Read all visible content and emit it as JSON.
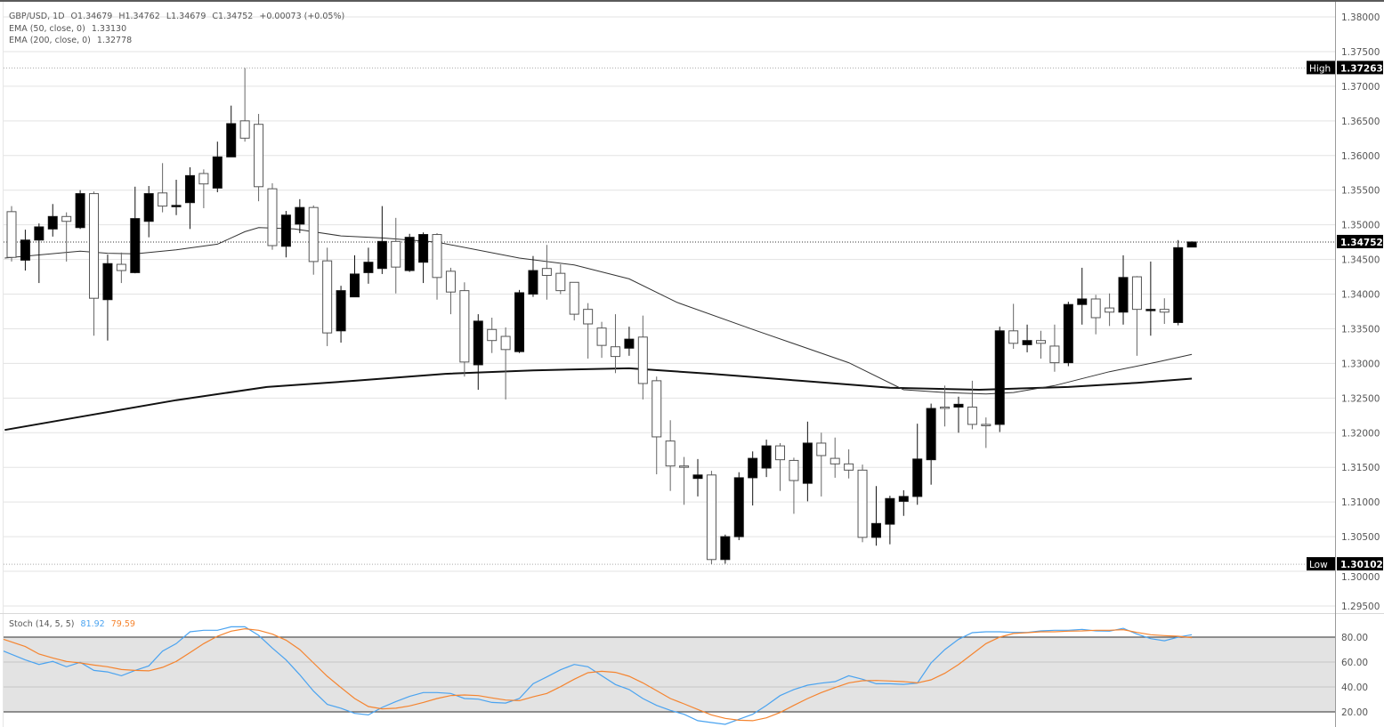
{
  "legend": {
    "symbol": "GBP/USD, 1D",
    "open": "O1.34679",
    "high": "H1.34762",
    "low": "L1.34679",
    "close": "C1.34752",
    "change": "+0.00073 (+0.05%)",
    "ema50_label": "EMA (50, close, 0)",
    "ema50_value": "1.33130",
    "ema200_label": "EMA (200, close, 0)",
    "ema200_value": "1.32778"
  },
  "stoch_legend": {
    "label": "Stoch (14, 5, 5)",
    "k_value": "81.92",
    "d_value": "79.59"
  },
  "tags": {
    "high_label": "High",
    "high_value": "1.37263",
    "low_label": "Low",
    "low_value": "1.30102",
    "last_value": "1.34752"
  },
  "colors": {
    "k_line": "#4aa3f0",
    "d_line": "#f5842f",
    "bull": "#000000",
    "bear": "#ffffff"
  },
  "chart_data": [
    {
      "type": "candlestick",
      "title": "GBP/USD, 1D",
      "price_axis": {
        "range": [
          1.295,
          1.38
        ],
        "ticks": [
          "1.38000",
          "1.37500",
          "1.37000",
          "1.36500",
          "1.36000",
          "1.35500",
          "1.35000",
          "1.34500",
          "1.34000",
          "1.33500",
          "1.33000",
          "1.32500",
          "1.32000",
          "1.31500",
          "1.31000",
          "1.30500",
          "1.30000",
          "1.29500"
        ]
      },
      "grid": true,
      "ohlc": [
        [
          1.3519,
          1.3527,
          1.3447,
          1.3453
        ],
        [
          1.3449,
          1.3493,
          1.3434,
          1.3478
        ],
        [
          1.3478,
          1.3502,
          1.3416,
          1.3497
        ],
        [
          1.3494,
          1.353,
          1.3483,
          1.3512
        ],
        [
          1.3512,
          1.3518,
          1.3447,
          1.3505
        ],
        [
          1.3496,
          1.355,
          1.3494,
          1.3545
        ],
        [
          1.3545,
          1.3548,
          1.334,
          1.3394
        ],
        [
          1.3392,
          1.3457,
          1.3333,
          1.3444
        ],
        [
          1.3443,
          1.346,
          1.3416,
          1.3434
        ],
        [
          1.3431,
          1.3555,
          1.343,
          1.3509
        ],
        [
          1.3505,
          1.3556,
          1.3482,
          1.3545
        ],
        [
          1.3546,
          1.3589,
          1.3518,
          1.3527
        ],
        [
          1.3528,
          1.3565,
          1.3514,
          1.3528
        ],
        [
          1.3532,
          1.3583,
          1.3494,
          1.3571
        ],
        [
          1.3574,
          1.358,
          1.3524,
          1.3559
        ],
        [
          1.3553,
          1.362,
          1.3547,
          1.3598
        ],
        [
          1.3598,
          1.3672,
          1.3598,
          1.3646
        ],
        [
          1.365,
          1.37263,
          1.362,
          1.3625
        ],
        [
          1.3645,
          1.366,
          1.3534,
          1.3555
        ],
        [
          1.3552,
          1.356,
          1.3464,
          1.347
        ],
        [
          1.3469,
          1.352,
          1.3453,
          1.3514
        ],
        [
          1.3501,
          1.3537,
          1.3488,
          1.3525
        ],
        [
          1.3525,
          1.3528,
          1.3428,
          1.3447
        ],
        [
          1.3448,
          1.3467,
          1.3325,
          1.3344
        ],
        [
          1.3347,
          1.3412,
          1.333,
          1.3405
        ],
        [
          1.3396,
          1.3456,
          1.3396,
          1.3429
        ],
        [
          1.3431,
          1.3467,
          1.3415,
          1.3446
        ],
        [
          1.3437,
          1.3527,
          1.3429,
          1.3476
        ],
        [
          1.3476,
          1.351,
          1.3401,
          1.3439
        ],
        [
          1.3434,
          1.3487,
          1.3432,
          1.3482
        ],
        [
          1.3446,
          1.3489,
          1.3416,
          1.3486
        ],
        [
          1.3486,
          1.3488,
          1.3392,
          1.3424
        ],
        [
          1.3433,
          1.3438,
          1.3371,
          1.3403
        ],
        [
          1.3405,
          1.3417,
          1.3281,
          1.3302
        ],
        [
          1.3298,
          1.3371,
          1.3262,
          1.3361
        ],
        [
          1.3349,
          1.3366,
          1.3315,
          1.3333
        ],
        [
          1.3339,
          1.3352,
          1.3248,
          1.332
        ],
        [
          1.3317,
          1.3406,
          1.3315,
          1.3402
        ],
        [
          1.34,
          1.3455,
          1.3396,
          1.3434
        ],
        [
          1.3437,
          1.3471,
          1.3392,
          1.3427
        ],
        [
          1.343,
          1.3443,
          1.34,
          1.3405
        ],
        [
          1.3417,
          1.3417,
          1.3362,
          1.3371
        ],
        [
          1.3378,
          1.3387,
          1.3307,
          1.3357
        ],
        [
          1.3351,
          1.336,
          1.3308,
          1.3326
        ],
        [
          1.3324,
          1.3371,
          1.3286,
          1.331
        ],
        [
          1.3322,
          1.3353,
          1.3311,
          1.3335
        ],
        [
          1.3338,
          1.3369,
          1.3248,
          1.3271
        ],
        [
          1.3275,
          1.3281,
          1.314,
          1.3194
        ],
        [
          1.3188,
          1.3218,
          1.3116,
          1.3152
        ],
        [
          1.3152,
          1.3165,
          1.3096,
          1.3151
        ],
        [
          1.3134,
          1.3162,
          1.3108,
          1.3139
        ],
        [
          1.3139,
          1.3145,
          1.30102,
          1.3017
        ],
        [
          1.3017,
          1.3053,
          1.3011,
          1.305
        ],
        [
          1.305,
          1.3143,
          1.3045,
          1.3135
        ],
        [
          1.3135,
          1.3173,
          1.3095,
          1.3163
        ],
        [
          1.3149,
          1.319,
          1.3136,
          1.3181
        ],
        [
          1.3181,
          1.3185,
          1.3116,
          1.3161
        ],
        [
          1.316,
          1.3164,
          1.3083,
          1.3131
        ],
        [
          1.3127,
          1.3216,
          1.3101,
          1.3185
        ],
        [
          1.3185,
          1.32,
          1.3108,
          1.3167
        ],
        [
          1.3163,
          1.3193,
          1.3135,
          1.3155
        ],
        [
          1.3155,
          1.3176,
          1.3134,
          1.3146
        ],
        [
          1.3146,
          1.3154,
          1.3042,
          1.3049
        ],
        [
          1.3049,
          1.3123,
          1.3037,
          1.3069
        ],
        [
          1.3068,
          1.3109,
          1.3039,
          1.3105
        ],
        [
          1.3101,
          1.3117,
          1.308,
          1.3108
        ],
        [
          1.3108,
          1.3213,
          1.3096,
          1.3162
        ],
        [
          1.3161,
          1.3242,
          1.3125,
          1.3235
        ],
        [
          1.3237,
          1.3268,
          1.3209,
          1.3236
        ],
        [
          1.3237,
          1.3252,
          1.32,
          1.3241
        ],
        [
          1.3237,
          1.3275,
          1.3205,
          1.3212
        ],
        [
          1.3212,
          1.3222,
          1.3178,
          1.3211
        ],
        [
          1.3212,
          1.3353,
          1.3201,
          1.3347
        ],
        [
          1.3347,
          1.3386,
          1.3321,
          1.3329
        ],
        [
          1.3327,
          1.3356,
          1.3316,
          1.3333
        ],
        [
          1.3333,
          1.3347,
          1.3307,
          1.3329
        ],
        [
          1.3325,
          1.3356,
          1.3288,
          1.3301
        ],
        [
          1.3301,
          1.3389,
          1.3296,
          1.3385
        ],
        [
          1.3385,
          1.3438,
          1.3356,
          1.3393
        ],
        [
          1.3393,
          1.3399,
          1.3342,
          1.3366
        ],
        [
          1.338,
          1.3401,
          1.3354,
          1.3374
        ],
        [
          1.3374,
          1.3456,
          1.3356,
          1.3424
        ],
        [
          1.3425,
          1.3426,
          1.3311,
          1.3378
        ],
        [
          1.3378,
          1.3447,
          1.334,
          1.3378
        ],
        [
          1.3378,
          1.3394,
          1.3357,
          1.3374
        ],
        [
          1.3359,
          1.3478,
          1.3355,
          1.3467
        ],
        [
          1.34679,
          1.34762,
          1.34679,
          1.34752
        ]
      ],
      "ema50": [
        [
          -0.5,
          1.3452
        ],
        [
          5,
          1.3462
        ],
        [
          7,
          1.3459
        ],
        [
          9,
          1.3458
        ],
        [
          12,
          1.3464
        ],
        [
          15,
          1.3472
        ],
        [
          17,
          1.349
        ],
        [
          18,
          1.3496
        ],
        [
          20.6,
          1.3494
        ],
        [
          24,
          1.3484
        ],
        [
          27,
          1.3481
        ],
        [
          31,
          1.3475
        ],
        [
          37,
          1.3452
        ],
        [
          41,
          1.3442
        ],
        [
          45,
          1.3422
        ],
        [
          48.5,
          1.3388
        ],
        [
          54,
          1.3349
        ],
        [
          61,
          1.3301
        ],
        [
          65,
          1.3262
        ],
        [
          68,
          1.3258
        ],
        [
          71,
          1.3256
        ],
        [
          73,
          1.3258
        ],
        [
          76,
          1.3268
        ],
        [
          80,
          1.3288
        ],
        [
          83.5,
          1.3302
        ],
        [
          86,
          1.3313
        ]
      ],
      "ema200": [
        [
          -0.5,
          1.3204
        ],
        [
          5.6,
          1.3225
        ],
        [
          12,
          1.3247
        ],
        [
          18.6,
          1.3266
        ],
        [
          25,
          1.3275
        ],
        [
          31.6,
          1.3285
        ],
        [
          38,
          1.329
        ],
        [
          45,
          1.3293
        ],
        [
          51,
          1.3285
        ],
        [
          57.5,
          1.3275
        ],
        [
          64,
          1.3265
        ],
        [
          70.5,
          1.3262
        ],
        [
          77,
          1.3266
        ],
        [
          82,
          1.3272
        ],
        [
          86,
          1.3278
        ]
      ],
      "high": 1.37263,
      "low": 1.30102,
      "last": 1.34752
    },
    {
      "type": "line",
      "title": "Stoch (14, 5, 5)",
      "y_range": [
        10,
        90
      ],
      "ticks": [
        "80.00",
        "60.00",
        "40.00",
        "20.00"
      ],
      "band": [
        20,
        80
      ],
      "series": [
        {
          "name": "%K",
          "values": [
            68.8,
            61.7,
            58.1,
            60.5,
            56.2,
            59.8,
            53.3,
            52.1,
            49.0,
            53.3,
            56.9,
            68.8,
            74.8,
            84.3,
            85.5,
            85.5,
            88.3,
            88.3,
            81.4,
            71.2,
            61.7,
            49.8,
            36.7,
            26.0,
            22.9,
            18.8,
            17.6,
            23.6,
            28.3,
            32.4,
            35.5,
            35.5,
            34.8,
            30.7,
            30.2,
            27.6,
            27.1,
            30.7,
            42.6,
            48.1,
            53.8,
            58.1,
            56.2,
            49.0,
            41.9,
            37.9,
            30.7,
            25.2,
            21.2,
            18.1,
            12.9,
            11.4,
            10.0,
            14.1,
            18.1,
            25.2,
            33.1,
            37.9,
            41.4,
            43.1,
            44.3,
            49.0,
            46.2,
            42.6,
            42.6,
            42.1,
            43.1,
            59.3,
            70.0,
            78.3,
            83.6,
            84.3,
            84.3,
            83.8,
            83.8,
            85.0,
            85.5,
            85.5,
            86.2,
            85.0,
            84.8,
            87.1,
            82.4,
            78.8,
            77.1,
            80.0,
            81.92
          ]
        },
        {
          "name": "%D",
          "values": [
            78.3,
            72.4,
            66.4,
            63.3,
            60.5,
            59.3,
            57.6,
            56.2,
            54.0,
            53.3,
            52.9,
            55.7,
            60.5,
            67.6,
            74.8,
            80.7,
            84.8,
            86.7,
            85.5,
            82.4,
            77.6,
            70.0,
            59.3,
            48.6,
            39.5,
            30.7,
            24.3,
            22.4,
            22.9,
            24.8,
            27.6,
            30.7,
            33.1,
            33.6,
            33.1,
            31.2,
            29.5,
            29.0,
            32.1,
            34.8,
            40.2,
            46.2,
            51.4,
            52.6,
            51.7,
            48.6,
            43.3,
            37.1,
            30.7,
            26.4,
            21.9,
            17.6,
            14.8,
            13.3,
            12.9,
            15.2,
            19.5,
            25.2,
            30.7,
            35.5,
            39.5,
            43.3,
            45.0,
            45.2,
            44.8,
            44.3,
            43.3,
            45.7,
            51.0,
            58.1,
            66.4,
            74.8,
            80.0,
            82.9,
            83.6,
            84.3,
            84.3,
            84.8,
            85.0,
            85.5,
            85.5,
            86.0,
            83.8,
            81.9,
            81.2,
            80.7,
            79.59
          ]
        }
      ]
    }
  ]
}
